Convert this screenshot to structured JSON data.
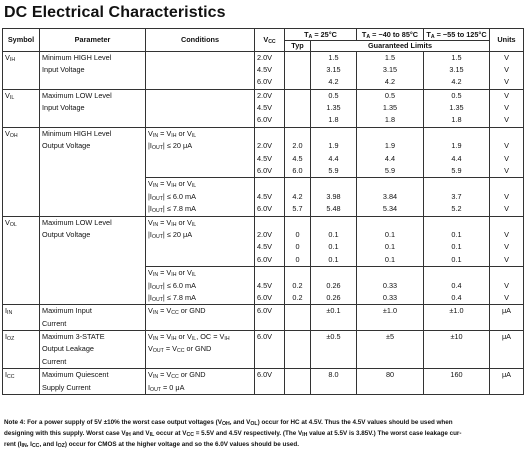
{
  "title": "DC Electrical Characteristics",
  "header": {
    "symbol": "Symbol",
    "parameter": "Parameter",
    "conditions": "Conditions",
    "vcc": "V",
    "vcc_sub": "CC",
    "ta25": "T",
    "ta25_sub": "A",
    "ta25_rest": " = 25°C",
    "typ": "Typ",
    "ta85": "T",
    "ta85_sub": "A",
    "ta85_rest": " = −40 to 85°C",
    "ta125": "T",
    "ta125_sub": "A",
    "ta125_rest": " = −55 to 125°C",
    "guaranteed": "Guaranteed Limits",
    "units": "Units"
  },
  "rows": {
    "vih": {
      "sym": "V",
      "sym_sub": "IH",
      "param": [
        "Minimum HIGH Level",
        "Input Voltage"
      ],
      "vcc": [
        "2.0V",
        "4.5V",
        "6.0V"
      ],
      "typ": [
        "",
        "",
        ""
      ],
      "l25": [
        "1.5",
        "3.15",
        "4.2"
      ],
      "l85": [
        "1.5",
        "3.15",
        "4.2"
      ],
      "l125": [
        "1.5",
        "3.15",
        "4.2"
      ],
      "units": [
        "V",
        "V",
        "V"
      ]
    },
    "vil": {
      "sym": "V",
      "sym_sub": "IL",
      "param": [
        "Maximum LOW Level",
        "Input Voltage"
      ],
      "vcc": [
        "2.0V",
        "4.5V",
        "6.0V"
      ],
      "l25": [
        "0.5",
        "1.35",
        "1.8"
      ],
      "l85": [
        "0.5",
        "1.35",
        "1.8"
      ],
      "l125": [
        "0.5",
        "1.35",
        "1.8"
      ],
      "units": [
        "V",
        "V",
        "V"
      ]
    },
    "voh": {
      "sym": "V",
      "sym_sub": "OH",
      "param": [
        "Minimum HIGH Level",
        "Output Voltage"
      ],
      "cond1": [
        "V",
        "IN",
        " = V",
        "IH",
        " or V",
        "IL"
      ],
      "cond1b": [
        "|I",
        "OUT",
        "| ≤ 20 μA"
      ],
      "vcc_a": [
        "2.0V",
        "4.5V",
        "6.0V"
      ],
      "typ_a": [
        "2.0",
        "4.5",
        "6.0"
      ],
      "l25_a": [
        "1.9",
        "4.4",
        "5.9"
      ],
      "l85_a": [
        "1.9",
        "4.4",
        "5.9"
      ],
      "l125_a": [
        "1.9",
        "4.4",
        "5.9"
      ],
      "units_a": [
        "V",
        "V",
        "V"
      ],
      "cond2a": "|I",
      "cond2b": "| ≤ 6.0 mA",
      "cond2c": "| ≤ 7.8 mA",
      "vcc_b": [
        "4.5V",
        "6.0V"
      ],
      "typ_b": [
        "4.2",
        "5.7"
      ],
      "l25_b": [
        "3.98",
        "5.48"
      ],
      "l85_b": [
        "3.84",
        "5.34"
      ],
      "l125_b": [
        "3.7",
        "5.2"
      ],
      "units_b": [
        "V",
        "V"
      ]
    },
    "vol": {
      "sym": "V",
      "sym_sub": "OL",
      "param": [
        "Maximum LOW Level",
        "Output Voltage"
      ],
      "vcc_a": [
        "2.0V",
        "4.5V",
        "6.0V"
      ],
      "typ_a": [
        "0",
        "0",
        "0"
      ],
      "l25_a": [
        "0.1",
        "0.1",
        "0.1"
      ],
      "l85_a": [
        "0.1",
        "0.1",
        "0.1"
      ],
      "l125_a": [
        "0.1",
        "0.1",
        "0.1"
      ],
      "units_a": [
        "V",
        "V",
        "V"
      ],
      "vcc_b": [
        "4.5V",
        "6.0V"
      ],
      "typ_b": [
        "0.2",
        "0.2"
      ],
      "l25_b": [
        "0.26",
        "0.26"
      ],
      "l85_b": [
        "0.33",
        "0.33"
      ],
      "l125_b": [
        "0.4",
        "0.4"
      ],
      "units_b": [
        "V",
        "V"
      ]
    },
    "iin": {
      "sym": "I",
      "sym_sub": "IN",
      "param": [
        "Maximum Input",
        "Current"
      ],
      "cond": " = V",
      "cond_end": " or GND",
      "vcc": "6.0V",
      "l25": "±0.1",
      "l85": "±1.0",
      "l125": "±1.0",
      "units": "μA"
    },
    "ioz": {
      "sym": "I",
      "sym_sub": "OZ",
      "param": [
        "Maximum 3-STATE",
        "Output Leakage",
        "Current"
      ],
      "cond_a": " = V",
      "cond_a2": " or V",
      "cond_a3": ", OC = V",
      "cond_b": " = V",
      "cond_b2": " or GND",
      "vcc": "6.0V",
      "l25": "±0.5",
      "l85": "±5",
      "l125": "±10",
      "units": "μA"
    },
    "icc": {
      "sym": "I",
      "sym_sub": "CC",
      "param": [
        "Maximum Quiescent",
        "Supply Current"
      ],
      "cond_b": " = 0 μA",
      "vcc": "6.0V",
      "l25": "8.0",
      "l85": "80",
      "l125": "160",
      "units": "μA"
    }
  },
  "note": {
    "l1_a": "Note 4: For a power supply of 5V ±10% the worst case output voltages (V",
    "l1_b": ", and V",
    "l1_c": ") occur for HC at 4.5V. Thus the 4.5V values should be used when",
    "l2_a": "designing with this supply. Worst case V",
    "l2_b": " and V",
    "l2_c": " occur at V",
    "l2_d": " = 5.5V and 4.5V respectively. (The V",
    "l2_e": " value at 5.5V is 3.85V.) The worst case leakage cur-",
    "l3_a": "rent (I",
    "l3_b": ", I",
    "l3_c": ", and I",
    "l3_d": ") occur for CMOS at the higher voltage and so the 6.0V values should be used."
  }
}
